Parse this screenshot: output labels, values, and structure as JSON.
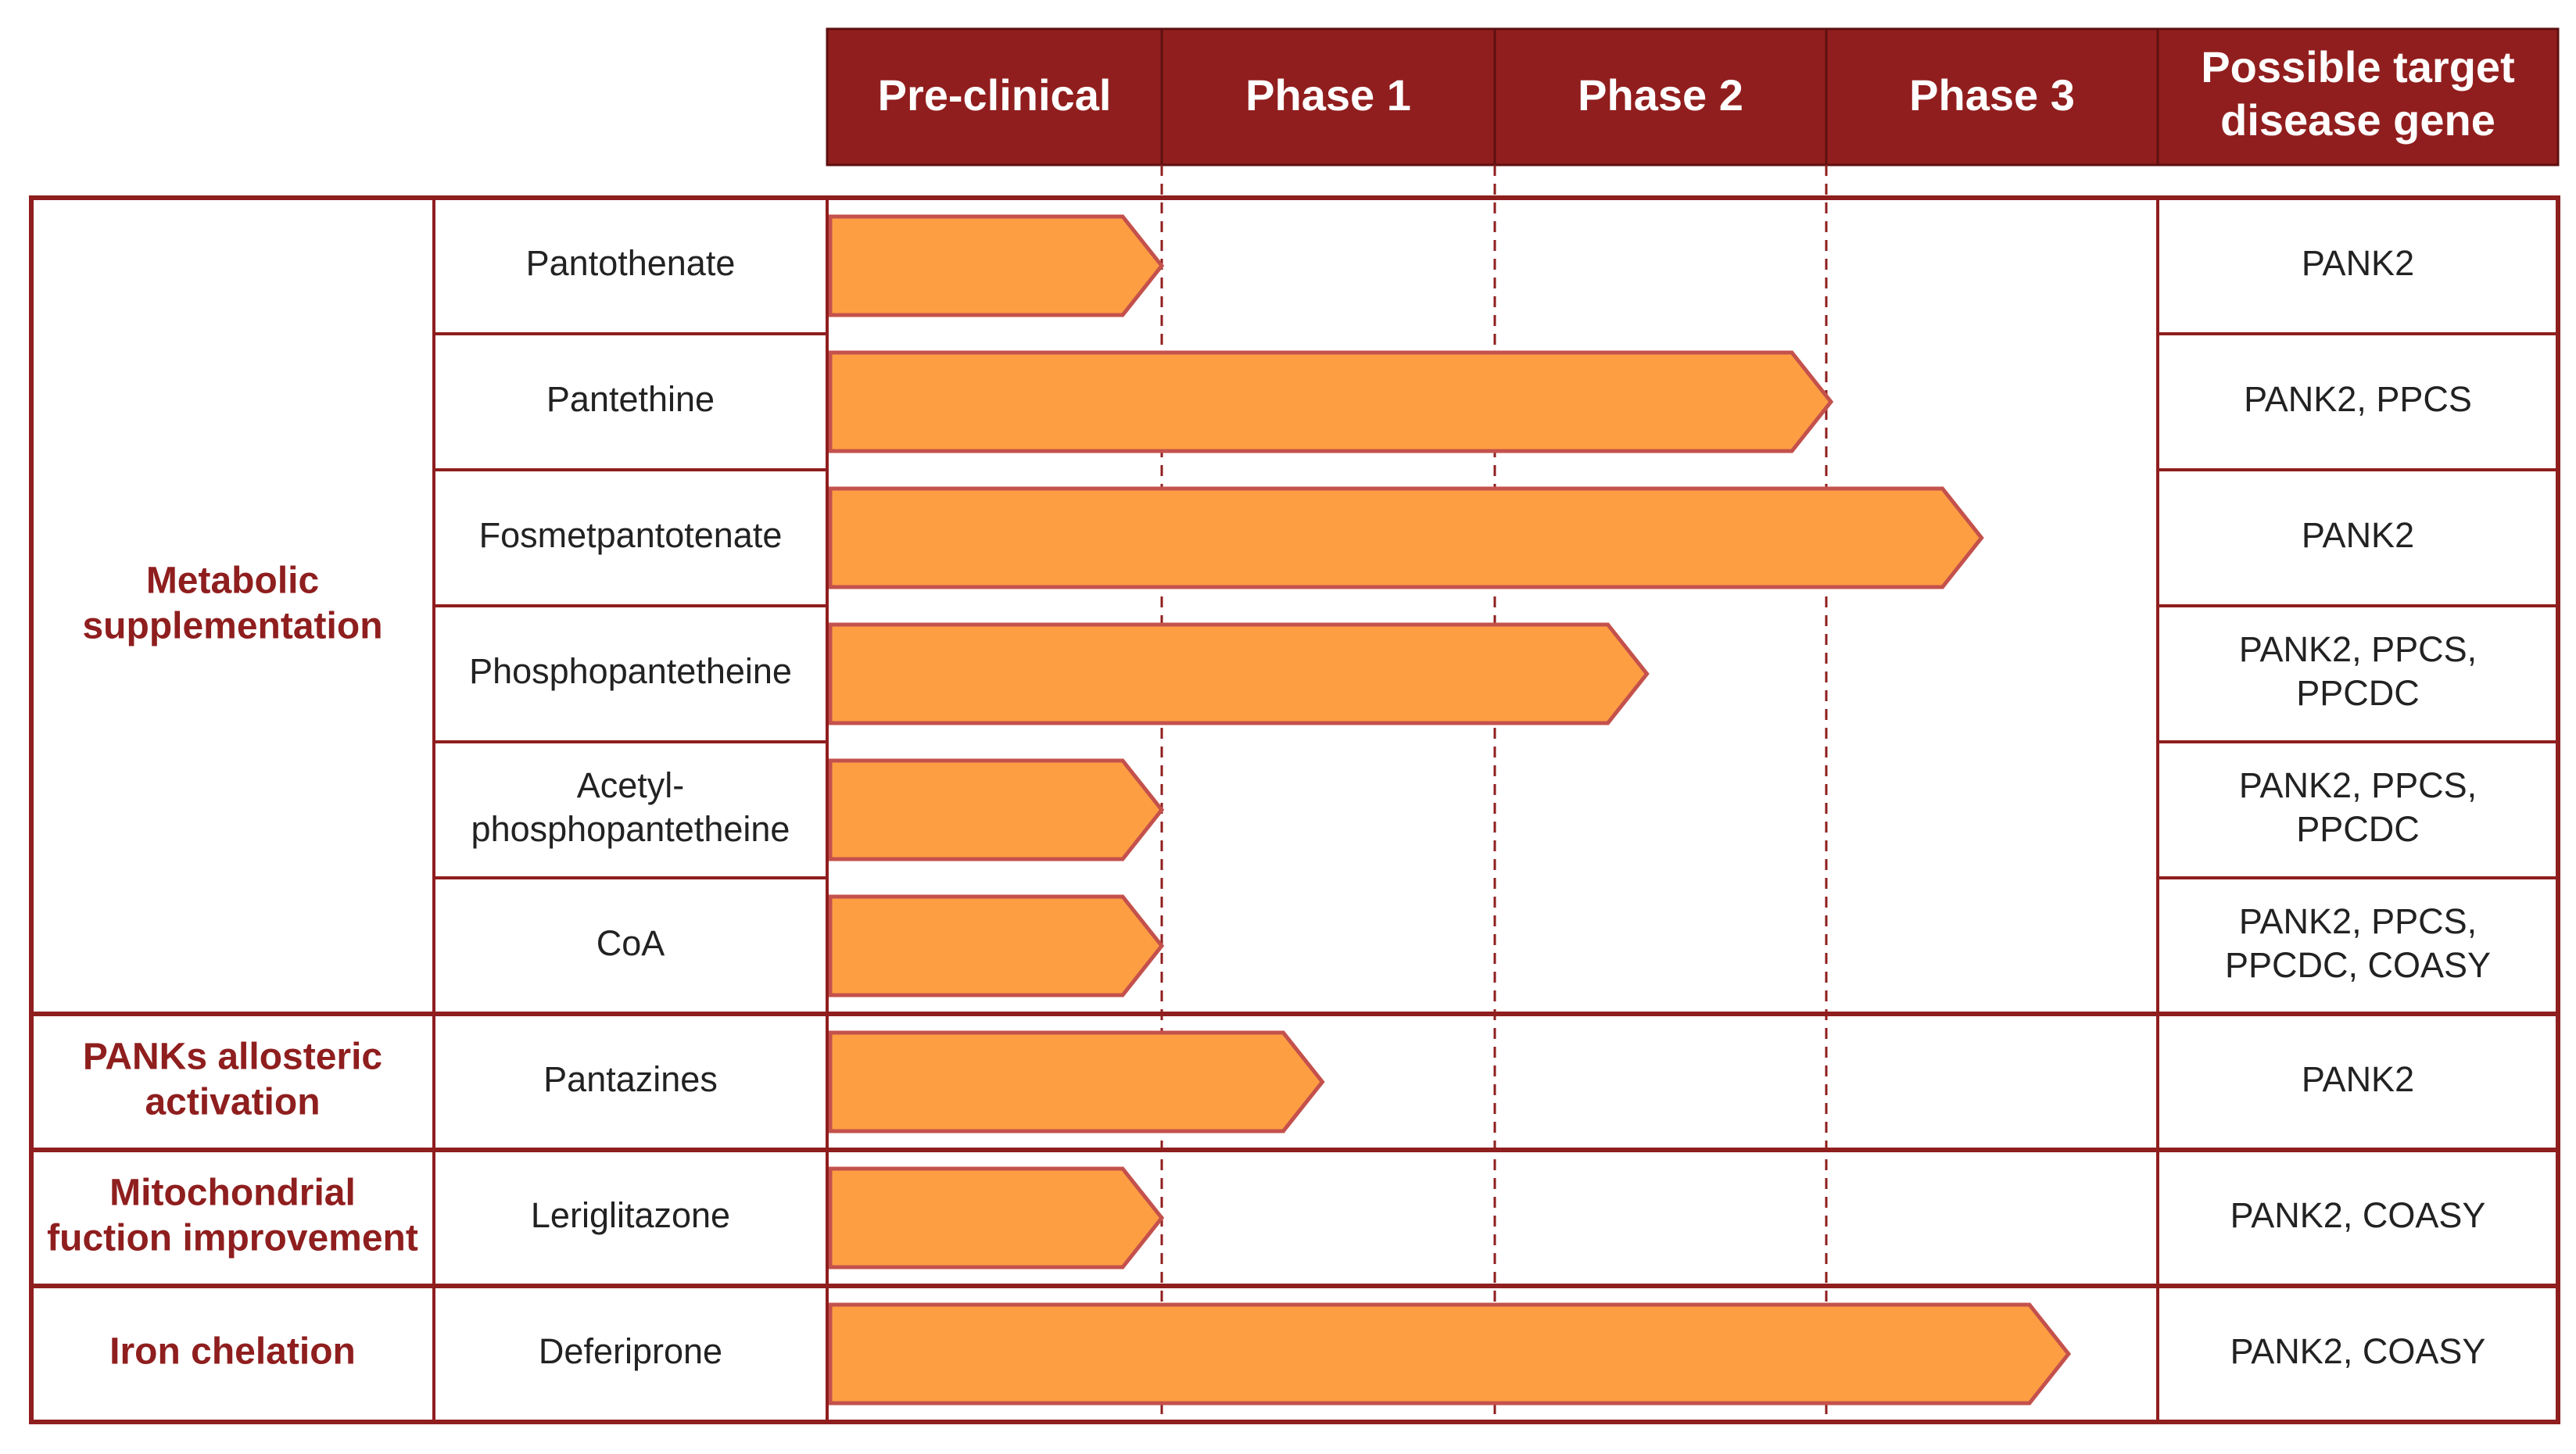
{
  "colors": {
    "header_fill": "#911e1e",
    "border": "#8f1e1e",
    "arrow_fill": "#fe9e43",
    "arrow_stroke": "#c4514c",
    "dashed_line": "#8f1e1e",
    "category_text": "#8f1e1e"
  },
  "header": {
    "stages": [
      "Pre-clinical",
      "Phase 1",
      "Phase 2",
      "Phase 3"
    ],
    "target_label_line1": "Possible target",
    "target_label_line2": "disease gene"
  },
  "categories": [
    {
      "name": "metabolic",
      "lines": [
        "Metabolic",
        "supplementation"
      ]
    },
    {
      "name": "panks",
      "lines": [
        "PANKs allosteric",
        "activation"
      ]
    },
    {
      "name": "mito",
      "lines": [
        "Mitochondrial",
        "fuction improvement"
      ]
    },
    {
      "name": "iron",
      "lines": [
        "Iron chelation"
      ]
    }
  ],
  "drugs": [
    {
      "lines": [
        "Pantothenate"
      ],
      "progress_stage": 1.0,
      "genes": [
        "PANK2"
      ]
    },
    {
      "lines": [
        "Pantethine"
      ],
      "progress_stage": 3.0,
      "genes": [
        "PANK2, PPCS"
      ]
    },
    {
      "lines": [
        "Fosmetpantotenate"
      ],
      "progress_stage": 3.45,
      "genes": [
        "PANK2"
      ]
    },
    {
      "lines": [
        "Phosphopantetheine"
      ],
      "progress_stage": 2.45,
      "genes": [
        "PANK2, PPCS,",
        "PPCDC"
      ]
    },
    {
      "lines": [
        "Acetyl-",
        "phosphopantetheine"
      ],
      "progress_stage": 1.0,
      "genes": [
        "PANK2, PPCS,",
        "PPCDC"
      ]
    },
    {
      "lines": [
        "CoA"
      ],
      "progress_stage": 1.0,
      "genes": [
        "PANK2, PPCS,",
        "PPCDC, COASY"
      ]
    },
    {
      "lines": [
        "Pantazines"
      ],
      "progress_stage": 1.48,
      "genes": [
        "PANK2"
      ]
    },
    {
      "lines": [
        "Leriglitazone"
      ],
      "progress_stage": 1.0,
      "genes": [
        "PANK2, COASY"
      ]
    },
    {
      "lines": [
        "Deferiprone"
      ],
      "progress_stage": 3.71,
      "genes": [
        "PANK2, COASY"
      ]
    }
  ]
}
